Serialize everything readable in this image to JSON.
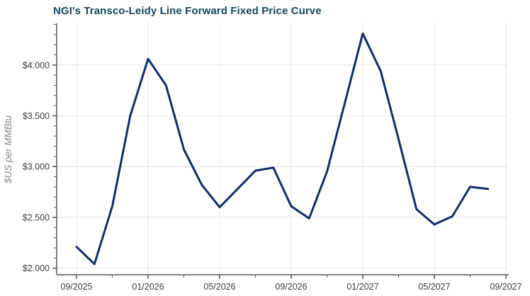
{
  "chart_data": {
    "type": "line",
    "title": "NGI's Transco-Leidy Line Forward Fixed Price Curve",
    "xlabel": "",
    "ylabel": "$US per MMBtu",
    "x": [
      "09/2025",
      "10/2025",
      "11/2025",
      "12/2025",
      "01/2026",
      "02/2026",
      "03/2026",
      "04/2026",
      "05/2026",
      "06/2026",
      "07/2026",
      "08/2026",
      "09/2026",
      "10/2026",
      "11/2026",
      "12/2026",
      "01/2027",
      "02/2027",
      "03/2027",
      "04/2027",
      "05/2027",
      "06/2027",
      "07/2027",
      "08/2027"
    ],
    "series": [
      {
        "name": "Transco-Leidy Line forward fixed price",
        "values": [
          2.21,
          2.04,
          2.61,
          3.5,
          4.06,
          3.8,
          3.17,
          2.82,
          2.6,
          2.78,
          2.96,
          2.99,
          2.61,
          2.49,
          2.95,
          3.63,
          4.31,
          3.94,
          3.27,
          2.58,
          2.43,
          2.51,
          2.8,
          2.78
        ]
      }
    ],
    "x_tick_labels": [
      "09/2025",
      "01/2026",
      "05/2026",
      "09/2026",
      "01/2027",
      "05/2027",
      "09/2027"
    ],
    "x_minor_ticks": [
      "11/2025",
      "03/2026",
      "07/2026",
      "11/2026",
      "03/2027",
      "07/2027"
    ],
    "y_ticks": [
      {
        "value": 2.0,
        "label": "$2.000"
      },
      {
        "value": 2.5,
        "label": "$2.500"
      },
      {
        "value": 3.0,
        "label": "$3.000"
      },
      {
        "value": 3.5,
        "label": "$3.500"
      },
      {
        "value": 4.0,
        "label": "$4.000"
      }
    ],
    "y_minor_tick_step": 0.1,
    "y_minor_tick_range": [
      2.0,
      4.4
    ],
    "ylim": [
      1.935,
      4.41
    ],
    "grid": "major-only",
    "legend": "none"
  },
  "colors": {
    "line": "#112d66",
    "title": "#11485f",
    "grid": "#e7e7e7",
    "axis": "#555555",
    "tick_text": "#3d3d3d",
    "ylabel_text": "#8a8a8a",
    "background": "#ffffff"
  }
}
